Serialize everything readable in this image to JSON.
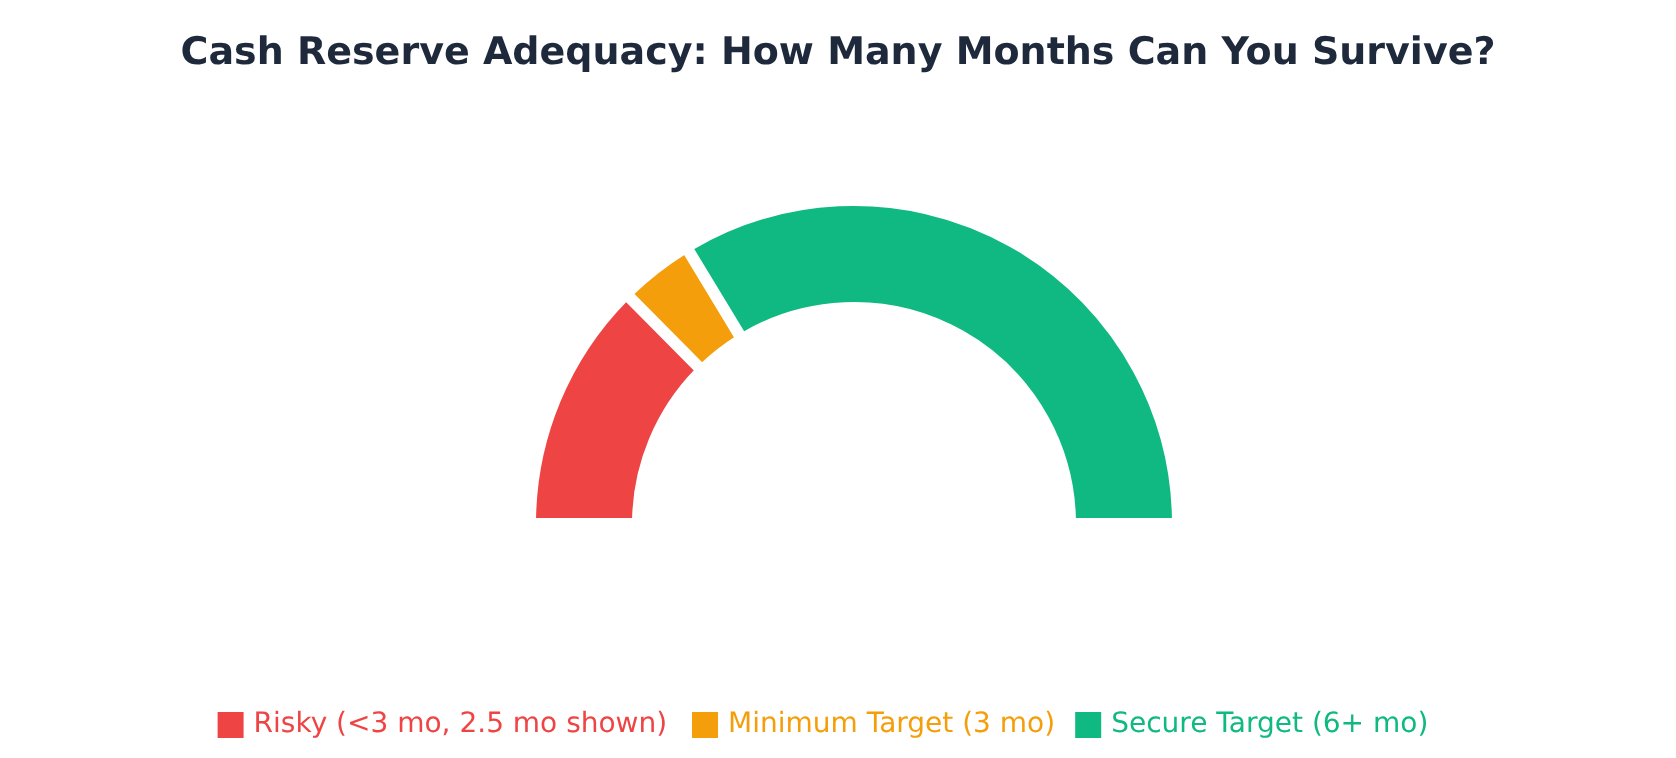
{
  "chart_data": {
    "type": "donut",
    "title": "Cash Reserve Adequacy: How Many Months Can You Survive?",
    "categories": [
      "Risky (<3 mo, 2.5 mo shown)",
      "Minimum Target (3 mo)",
      "Secure Target (6+ mo)"
    ],
    "values": [
      25,
      7,
      68
    ],
    "colors": [
      "#ef4444",
      "#f59e0b",
      "#10b981"
    ],
    "legend": "bottom"
  }
}
